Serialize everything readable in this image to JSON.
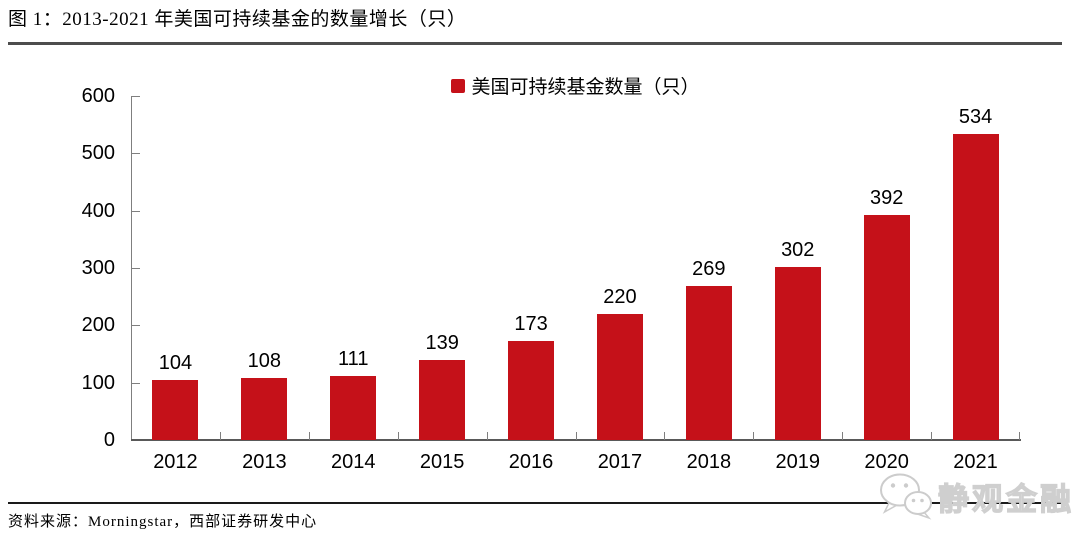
{
  "figure": {
    "title": "图 1：2013-2021 年美国可持续基金的数量增长（只）",
    "source": "资料来源：Morningstar，西部证券研发中心"
  },
  "legend": {
    "label": "美国可持续基金数量（只）",
    "swatch_color": "#C51119"
  },
  "watermark": {
    "icon": "wechat-icon",
    "text": "静观金融"
  },
  "chart_data": {
    "type": "bar",
    "title": "图 1：2013-2021 年美国可持续基金的数量增长（只）",
    "series_name": "美国可持续基金数量（只）",
    "categories": [
      "2012",
      "2013",
      "2014",
      "2015",
      "2016",
      "2017",
      "2018",
      "2019",
      "2020",
      "2021"
    ],
    "values": [
      104,
      108,
      111,
      139,
      173,
      220,
      269,
      302,
      392,
      534
    ],
    "xlabel": "",
    "ylabel": "",
    "ylim": [
      0,
      600
    ],
    "yticks": [
      0,
      100,
      200,
      300,
      400,
      500,
      600
    ],
    "bar_color": "#C51119",
    "grid": false,
    "value_labels": true,
    "legend_position": "top-center"
  }
}
